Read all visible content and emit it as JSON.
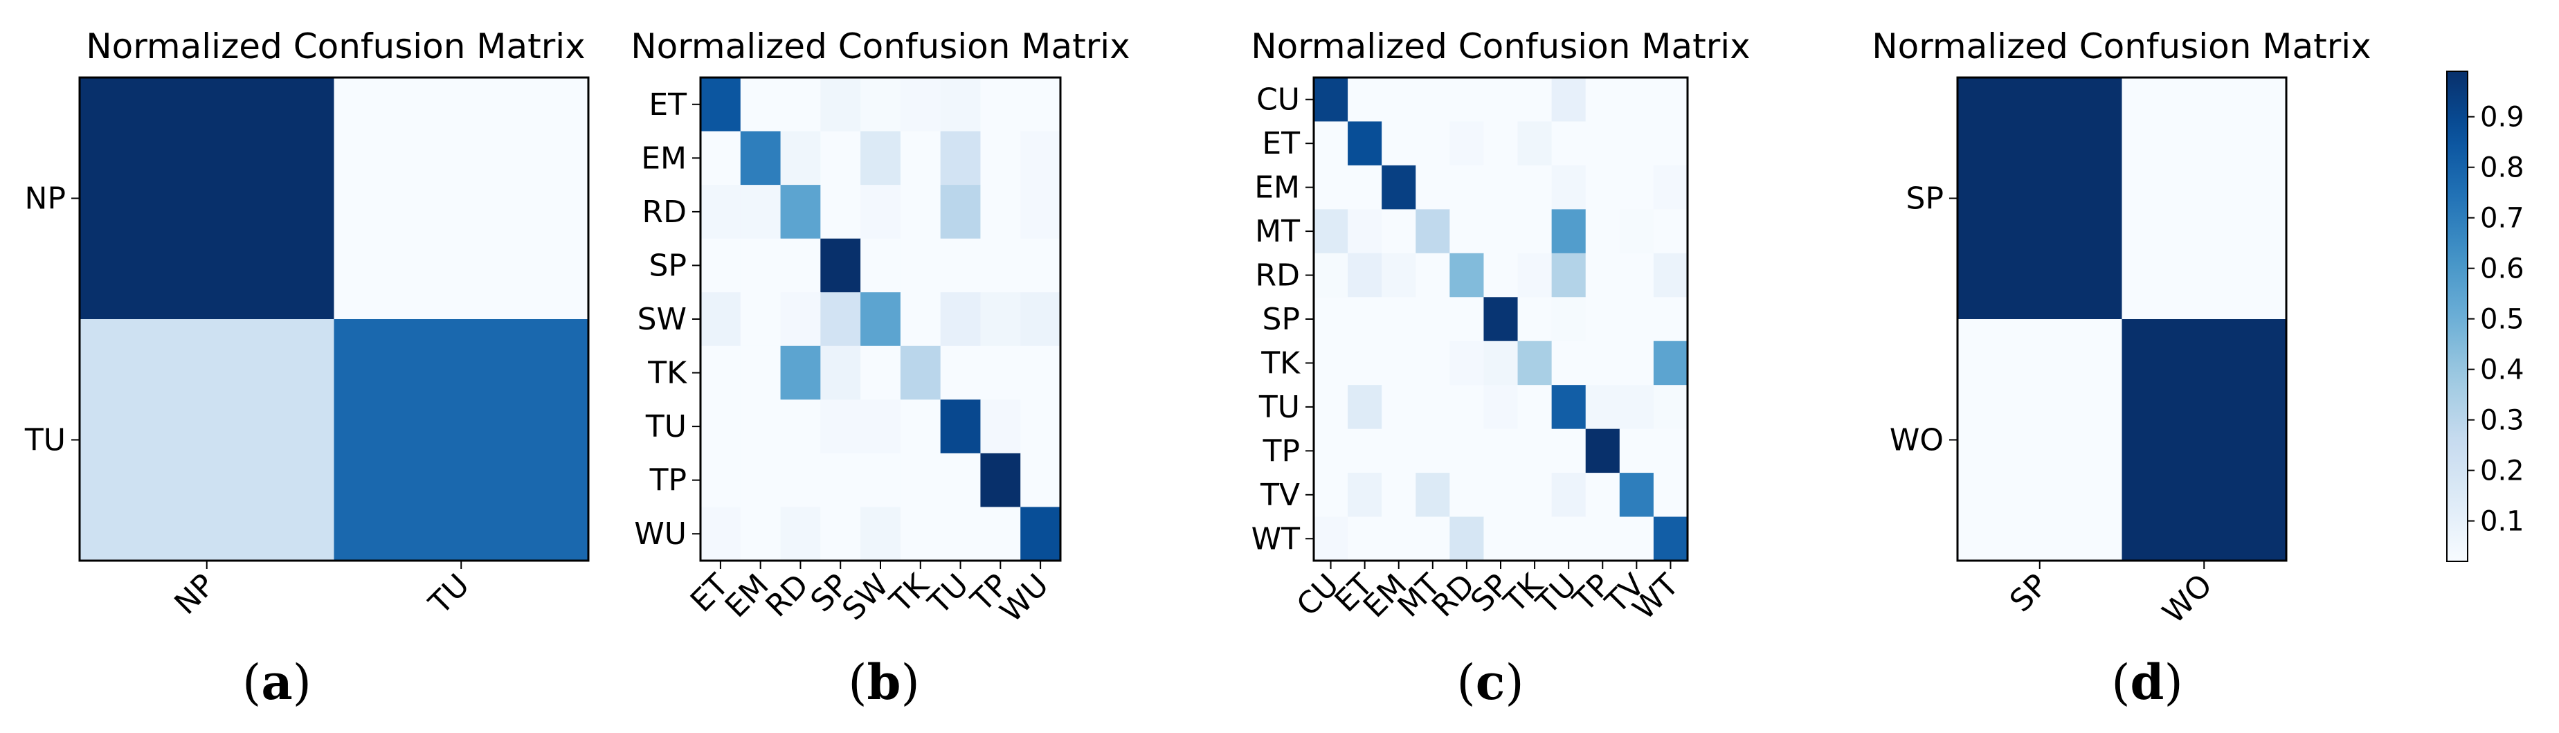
{
  "chart_data": [
    {
      "type": "heatmap",
      "title": "Normalized Confusion Matrix",
      "panel_label": "a",
      "x_labels": [
        "NP",
        "TU"
      ],
      "y_labels": [
        "NP",
        "TU"
      ],
      "values": [
        [
          1.0,
          0.02
        ],
        [
          0.22,
          0.78
        ]
      ]
    },
    {
      "type": "heatmap",
      "title": "Normalized Confusion Matrix",
      "panel_label": "b",
      "x_labels": [
        "ET",
        "EM",
        "RD",
        "SP",
        "SW",
        "TK",
        "TU",
        "TP",
        "WU"
      ],
      "y_labels": [
        "ET",
        "EM",
        "RD",
        "SP",
        "SW",
        "TK",
        "TU",
        "TP",
        "WU"
      ],
      "values": [
        [
          0.85,
          0.02,
          0.02,
          0.06,
          0.03,
          0.04,
          0.05,
          0.02,
          0.02
        ],
        [
          0.02,
          0.7,
          0.06,
          0.02,
          0.15,
          0.02,
          0.2,
          0.02,
          0.04
        ],
        [
          0.05,
          0.05,
          0.55,
          0.02,
          0.04,
          0.02,
          0.3,
          0.02,
          0.04
        ],
        [
          0.02,
          0.02,
          0.02,
          0.99,
          0.02,
          0.02,
          0.02,
          0.02,
          0.02
        ],
        [
          0.08,
          0.02,
          0.04,
          0.2,
          0.55,
          0.02,
          0.1,
          0.06,
          0.08
        ],
        [
          0.02,
          0.02,
          0.55,
          0.08,
          0.02,
          0.3,
          0.02,
          0.02,
          0.02
        ],
        [
          0.02,
          0.02,
          0.02,
          0.04,
          0.04,
          0.02,
          0.9,
          0.04,
          0.02
        ],
        [
          0.02,
          0.02,
          0.02,
          0.02,
          0.02,
          0.02,
          0.02,
          0.99,
          0.02
        ],
        [
          0.04,
          0.02,
          0.05,
          0.02,
          0.06,
          0.02,
          0.02,
          0.02,
          0.88
        ]
      ]
    },
    {
      "type": "heatmap",
      "title": "Normalized Confusion Matrix",
      "panel_label": "c",
      "x_labels": [
        "CU",
        "ET",
        "EM",
        "MT",
        "RD",
        "SP",
        "TK",
        "TU",
        "TP",
        "TV",
        "WT"
      ],
      "y_labels": [
        "CU",
        "ET",
        "EM",
        "MT",
        "RD",
        "SP",
        "TK",
        "TU",
        "TP",
        "TV",
        "WT"
      ],
      "values": [
        [
          0.92,
          0.02,
          0.02,
          0.02,
          0.02,
          0.02,
          0.02,
          0.1,
          0.02,
          0.02,
          0.02
        ],
        [
          0.02,
          0.88,
          0.02,
          0.02,
          0.04,
          0.02,
          0.06,
          0.02,
          0.02,
          0.02,
          0.02
        ],
        [
          0.02,
          0.02,
          0.93,
          0.02,
          0.02,
          0.02,
          0.02,
          0.05,
          0.02,
          0.02,
          0.04
        ],
        [
          0.14,
          0.04,
          0.02,
          0.28,
          0.02,
          0.02,
          0.02,
          0.58,
          0.02,
          0.03,
          0.02
        ],
        [
          0.03,
          0.1,
          0.05,
          0.02,
          0.45,
          0.02,
          0.04,
          0.32,
          0.02,
          0.02,
          0.08
        ],
        [
          0.02,
          0.02,
          0.02,
          0.02,
          0.02,
          0.97,
          0.02,
          0.03,
          0.02,
          0.02,
          0.02
        ],
        [
          0.02,
          0.02,
          0.02,
          0.02,
          0.04,
          0.06,
          0.35,
          0.02,
          0.02,
          0.02,
          0.55
        ],
        [
          0.02,
          0.14,
          0.02,
          0.02,
          0.02,
          0.04,
          0.02,
          0.82,
          0.05,
          0.05,
          0.03
        ],
        [
          0.02,
          0.02,
          0.02,
          0.02,
          0.02,
          0.02,
          0.02,
          0.02,
          0.99,
          0.02,
          0.02
        ],
        [
          0.02,
          0.08,
          0.02,
          0.15,
          0.02,
          0.02,
          0.02,
          0.07,
          0.02,
          0.7,
          0.02
        ],
        [
          0.04,
          0.02,
          0.02,
          0.02,
          0.18,
          0.02,
          0.02,
          0.02,
          0.02,
          0.02,
          0.82
        ]
      ]
    },
    {
      "type": "heatmap",
      "title": "Normalized Confusion Matrix",
      "panel_label": "d",
      "x_labels": [
        "SP",
        "WO"
      ],
      "y_labels": [
        "SP",
        "WO"
      ],
      "values": [
        [
          0.99,
          0.02
        ],
        [
          0.02,
          0.99
        ]
      ],
      "colorbar": {
        "min": 0.02,
        "max": 0.99,
        "ticks": [
          "0.1",
          "0.2",
          "0.3",
          "0.4",
          "0.5",
          "0.6",
          "0.7",
          "0.8",
          "0.9"
        ],
        "tick_values": [
          0.1,
          0.2,
          0.3,
          0.4,
          0.5,
          0.6,
          0.7,
          0.8,
          0.9
        ]
      }
    }
  ]
}
